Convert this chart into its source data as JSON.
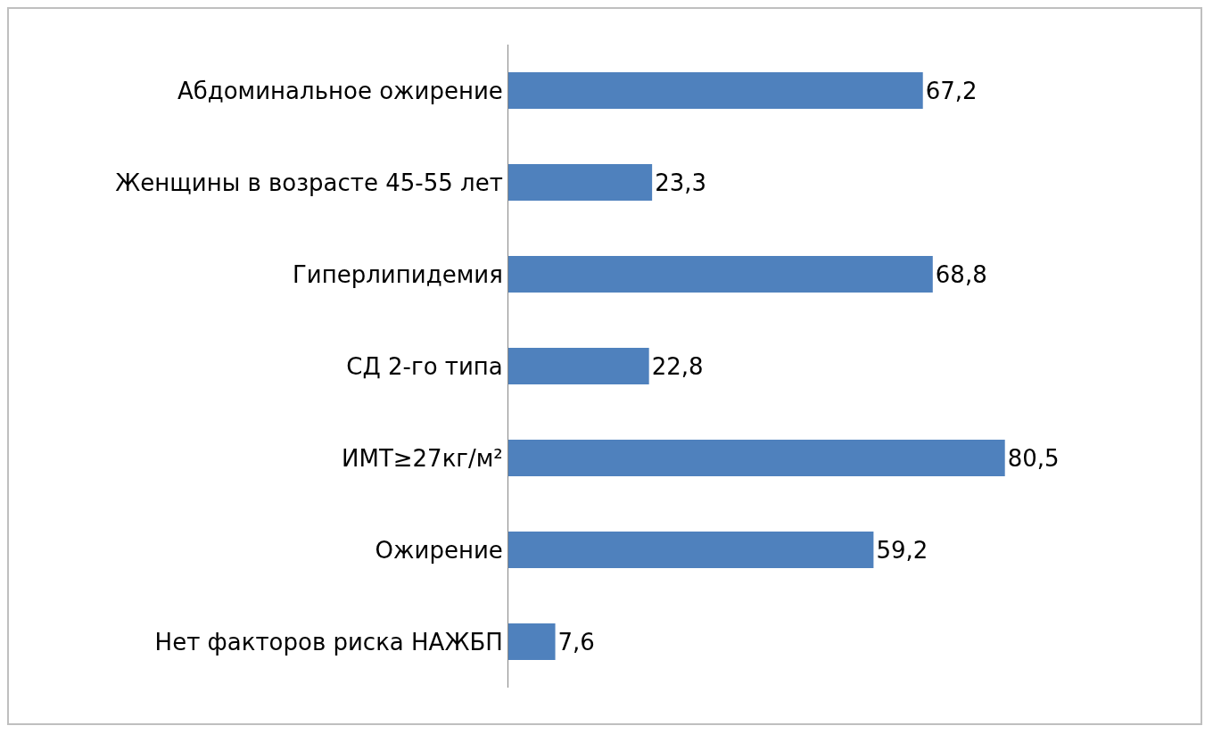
{
  "chart_data": {
    "type": "bar",
    "orientation": "horizontal",
    "categories": [
      "Абдоминальное ожирение",
      "Женщины в возрасте 45-55 лет",
      "Гиперлипидемия",
      "СД 2-го типа",
      "ИМТ≥27кг/м²",
      "Ожирение",
      "Нет факторов риска НАЖБП"
    ],
    "values": [
      67.2,
      23.3,
      68.8,
      22.8,
      80.5,
      59.2,
      7.6
    ],
    "value_labels": [
      "67,2",
      "23,3",
      "68,8",
      "22,8",
      "80,5",
      "59,2",
      "7,6"
    ],
    "color": "#4f81bd",
    "tick_labels": "y"
  }
}
